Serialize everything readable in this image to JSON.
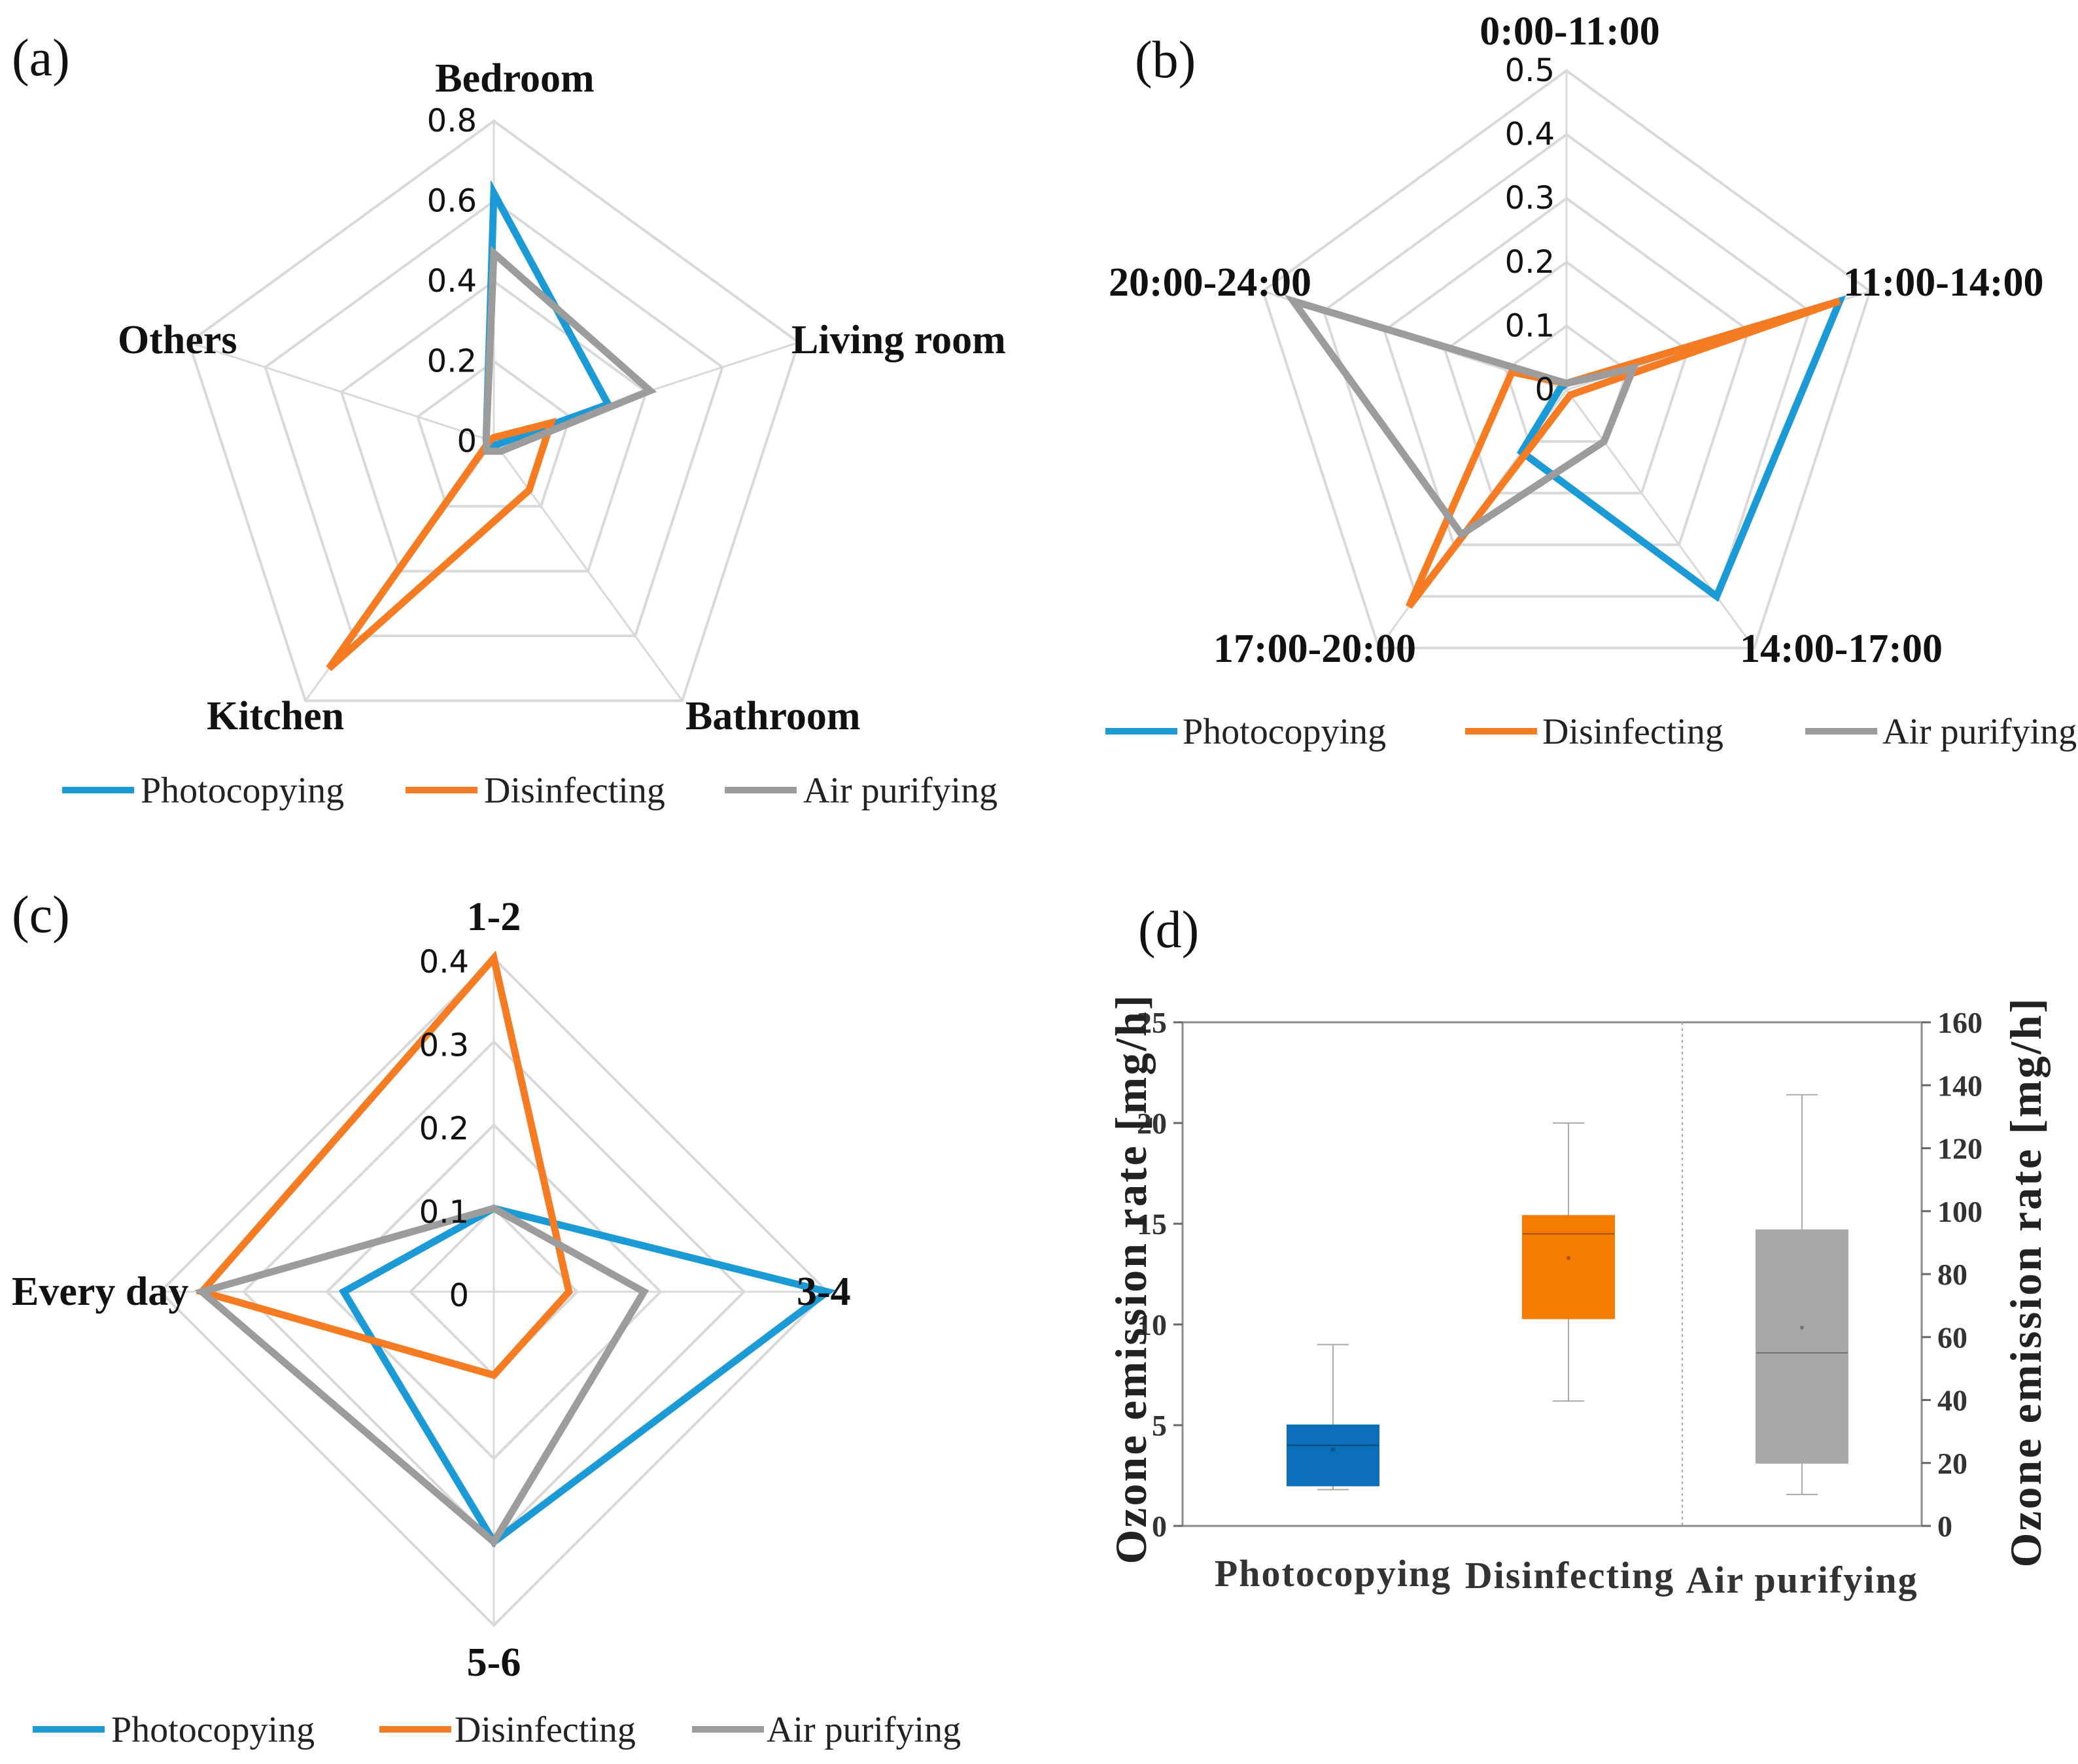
{
  "colors": {
    "photocopying": "#1b9ad6",
    "disinfecting": "#f57c22",
    "air_purifying": "#9c9c9c",
    "grid": "#d9d9d9",
    "box_photocopying": "#0a6fb8",
    "box_disinfecting": "#f57c00",
    "box_air_purifying": "#a8a8a8"
  },
  "chart_data": [
    {
      "panel": "(a)",
      "type": "radar",
      "categories": [
        "Bedroom",
        "Living room",
        "Bathroom",
        "Kitchen",
        "Others"
      ],
      "rmax": 0.8,
      "ticks": [
        "0",
        "0.2",
        "0.4",
        "0.6",
        "0.8"
      ],
      "tick_values": [
        0,
        0.2,
        0.4,
        0.6,
        0.8
      ],
      "series": [
        {
          "name": "Photocopying",
          "key": "photocopying",
          "values": [
            0.62,
            0.3,
            0.01,
            0.01,
            0.02
          ]
        },
        {
          "name": "Disinfecting",
          "key": "disinfecting",
          "values": [
            0.01,
            0.15,
            0.15,
            0.7,
            0.01
          ]
        },
        {
          "name": "Air purifying",
          "key": "air_purifying",
          "values": [
            0.47,
            0.41,
            0.03,
            0.03,
            0.02
          ]
        }
      ],
      "legend": [
        "Photocopying",
        "Disinfecting",
        "Air purifying"
      ]
    },
    {
      "panel": "(b)",
      "type": "radar",
      "categories": [
        "0:00-11:00",
        "11:00-14:00",
        "14:00-17:00",
        "17:00-20:00",
        "20:00-24:00"
      ],
      "rmax": 0.5,
      "ticks": [
        "0",
        "0.1",
        "0.2",
        "0.3",
        "0.4",
        "0.5"
      ],
      "tick_values": [
        0,
        0.1,
        0.2,
        0.3,
        0.4,
        0.5
      ],
      "series": [
        {
          "name": "Photocopying",
          "key": "photocopying",
          "values": [
            0.01,
            0.45,
            0.4,
            0.12,
            0.01
          ]
        },
        {
          "name": "Disinfecting",
          "key": "disinfecting",
          "values": [
            0.01,
            0.45,
            0.01,
            0.42,
            0.09
          ]
        },
        {
          "name": "Air purifying",
          "key": "air_purifying",
          "values": [
            0.01,
            0.11,
            0.1,
            0.28,
            0.45
          ]
        }
      ],
      "legend": [
        "Photocopying",
        "Disinfecting",
        "Air purifying"
      ]
    },
    {
      "panel": "(c)",
      "type": "radar",
      "categories": [
        "1-2",
        "3-4",
        "5-6",
        "Every day"
      ],
      "rmax": 0.4,
      "ticks": [
        "0",
        "0.1",
        "0.2",
        "0.3",
        "0.4"
      ],
      "tick_values": [
        0,
        0.1,
        0.2,
        0.3,
        0.4
      ],
      "series": [
        {
          "name": "Photocopying",
          "key": "photocopying",
          "values": [
            0.1,
            0.4,
            0.3,
            0.18
          ]
        },
        {
          "name": "Disinfecting",
          "key": "disinfecting",
          "values": [
            0.4,
            0.09,
            0.1,
            0.35
          ]
        },
        {
          "name": "Air purifying",
          "key": "air_purifying",
          "values": [
            0.1,
            0.18,
            0.3,
            0.35
          ]
        }
      ],
      "legend": [
        "Photocopying",
        "Disinfecting",
        "Air purifying"
      ]
    },
    {
      "panel": "(d)",
      "type": "box",
      "categories": [
        "Photocopying",
        "Disinfecting",
        "Air purifying"
      ],
      "ylabel": "Ozone emission rate [mg/h]",
      "ylabel_right": "Ozone emission rate [mg/h]",
      "ylim": [
        0,
        25
      ],
      "yticks": [
        "0",
        "5",
        "10",
        "15",
        "20",
        "25"
      ],
      "ytick_values": [
        0,
        5,
        10,
        15,
        20,
        25
      ],
      "ylim_right": [
        0,
        160
      ],
      "yticks_right": [
        "0",
        "20",
        "40",
        "60",
        "80",
        "100",
        "120",
        "140",
        "160"
      ],
      "ytick_values_right": [
        0,
        20,
        40,
        60,
        80,
        100,
        120,
        140,
        160
      ],
      "boxes": [
        {
          "name": "Photocopying",
          "key": "box_photocopying",
          "axis": "left",
          "min": 1.8,
          "q1": 2.0,
          "median": 4.0,
          "mean": 3.8,
          "q3": 5.0,
          "max": 9.0
        },
        {
          "name": "Disinfecting",
          "key": "box_disinfecting",
          "axis": "left",
          "min": 6.2,
          "q1": 10.3,
          "median": 14.5,
          "mean": 13.3,
          "q3": 15.4,
          "max": 20.0
        },
        {
          "name": "Air purifying",
          "key": "box_air_purifying",
          "axis": "right",
          "min": 10,
          "q1": 20,
          "median": 55,
          "mean": 63,
          "q3": 94,
          "max": 137
        }
      ]
    }
  ]
}
